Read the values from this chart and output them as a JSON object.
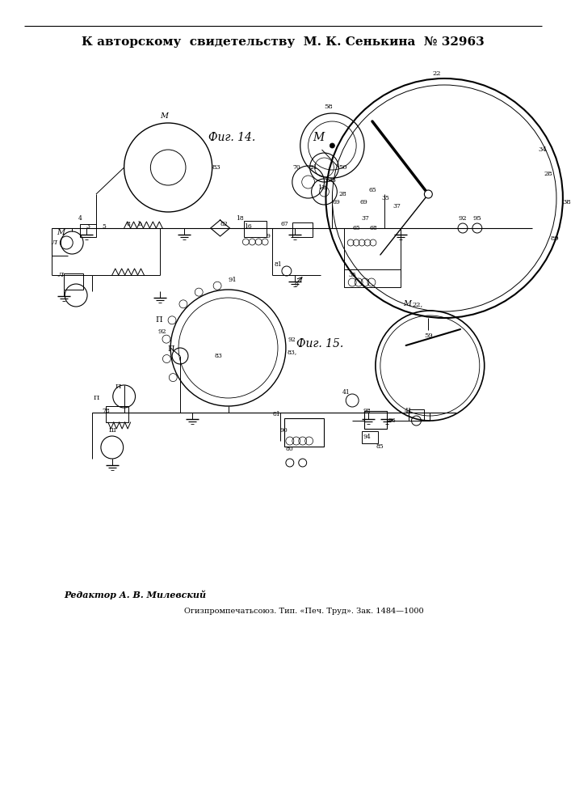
{
  "title_line": "К авторскому  свидетельству  М. К. Сенькина  № 32963",
  "fig14_label": "Фиг. 14.",
  "fig15_label": "Фиг. 15.",
  "editor_text": "Редактор А. В. Милевский",
  "publisher_text": "Огизпромпечатьсоюз. Тип. «Печ. Труд». Зак. 1484—1000",
  "bg_color": "#ffffff",
  "line_color": "#000000"
}
